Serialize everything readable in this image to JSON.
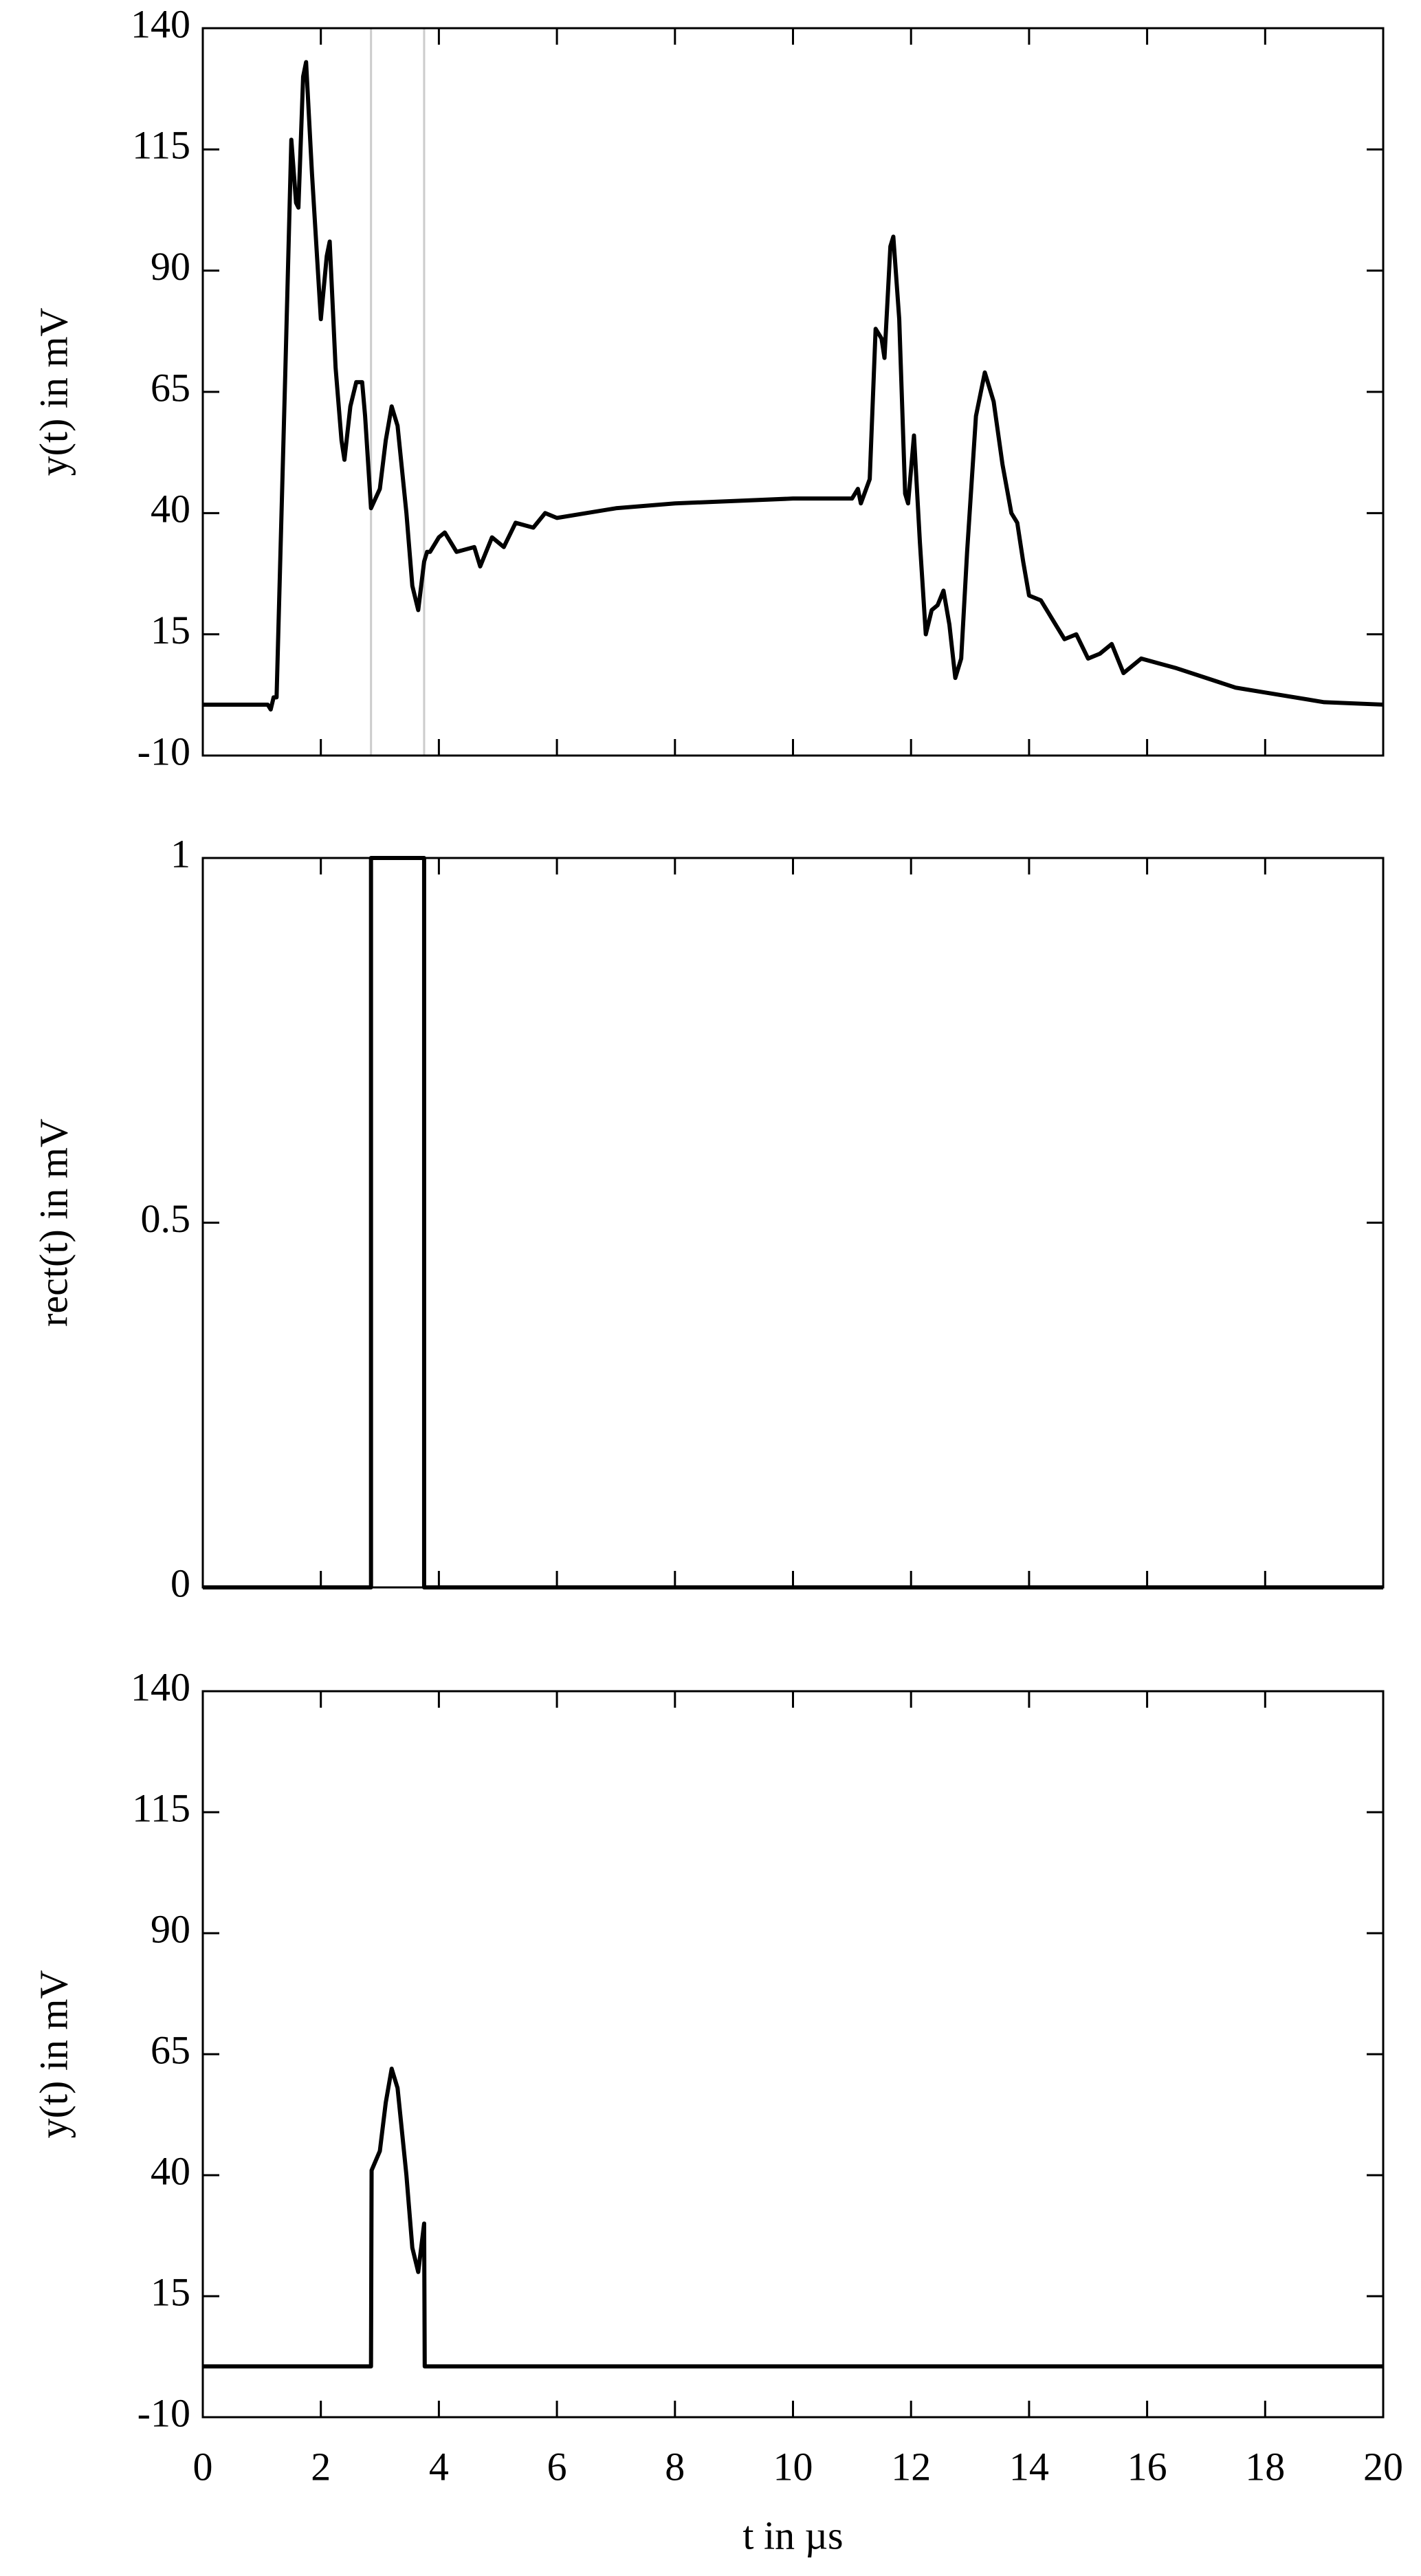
{
  "chart_data": [
    {
      "type": "line",
      "ylabel": "y(t) in mV",
      "xlim": [
        0,
        20
      ],
      "ylim": [
        -10,
        140
      ],
      "yticks": [
        -10,
        15,
        40,
        65,
        90,
        115,
        140
      ],
      "markers": [
        2.85,
        3.75
      ],
      "color": "#000000",
      "x": [
        0,
        1.1,
        1.15,
        1.2,
        1.25,
        1.4,
        1.5,
        1.58,
        1.62,
        1.7,
        1.75,
        1.85,
        2.0,
        2.1,
        2.15,
        2.25,
        2.35,
        2.4,
        2.5,
        2.6,
        2.7,
        2.75,
        2.85,
        3.0,
        3.1,
        3.2,
        3.3,
        3.45,
        3.55,
        3.65,
        3.75,
        3.8,
        3.85,
        4.0,
        4.1,
        4.3,
        4.6,
        4.7,
        4.9,
        5.1,
        5.3,
        5.6,
        5.8,
        6.0,
        6.5,
        7.0,
        8,
        9,
        10,
        11,
        11.1,
        11.15,
        11.3,
        11.4,
        11.5,
        11.55,
        11.65,
        11.7,
        11.8,
        11.9,
        11.95,
        12.05,
        12.15,
        12.25,
        12.35,
        12.45,
        12.55,
        12.65,
        12.75,
        12.85,
        12.95,
        13.1,
        13.25,
        13.4,
        13.55,
        13.7,
        13.8,
        13.9,
        14.0,
        14.2,
        14.4,
        14.6,
        14.8,
        15.0,
        15.2,
        15.4,
        15.6,
        15.9,
        16.2,
        16.5,
        17.0,
        17.5,
        18,
        19,
        20
      ],
      "values": [
        0.5,
        0.5,
        -0.5,
        2,
        2,
        70,
        117,
        104,
        103,
        130,
        133,
        110,
        80,
        93,
        96,
        70,
        55,
        51,
        62,
        67,
        67,
        60,
        41,
        45,
        55,
        62,
        58,
        40,
        25,
        20,
        30,
        32,
        32,
        35,
        36,
        32,
        33,
        29,
        35,
        33,
        38,
        37,
        40,
        39,
        40,
        41,
        42,
        42.5,
        43,
        43,
        45,
        42,
        47,
        78,
        76,
        72,
        95,
        97,
        80,
        44,
        42,
        56,
        34,
        15,
        20,
        21,
        24,
        17,
        6,
        10,
        32,
        60,
        69,
        63,
        50,
        40,
        38,
        30,
        23,
        22,
        18,
        14,
        15,
        10,
        11,
        13,
        7,
        10,
        9,
        8,
        6,
        4,
        3,
        1,
        0.5
      ]
    },
    {
      "type": "line",
      "ylabel": "rect(t) in mV",
      "xlim": [
        0,
        20
      ],
      "ylim": [
        0,
        1
      ],
      "yticks": [
        0,
        0.5,
        1
      ],
      "color": "#000000",
      "x": [
        0,
        2.85,
        2.85,
        3.75,
        3.75,
        20
      ],
      "values": [
        0,
        0,
        1,
        1,
        0,
        0
      ]
    },
    {
      "type": "line",
      "ylabel": "y(t) in mV",
      "xlabel": "t in µs",
      "xlim": [
        0,
        20
      ],
      "xticks": [
        0,
        2,
        4,
        6,
        8,
        10,
        12,
        14,
        16,
        18,
        20
      ],
      "ylim": [
        -10,
        140
      ],
      "yticks": [
        -10,
        15,
        40,
        65,
        90,
        115,
        140
      ],
      "color": "#000000",
      "x": [
        0,
        2.85,
        2.86,
        3.0,
        3.1,
        3.2,
        3.3,
        3.45,
        3.55,
        3.65,
        3.75,
        3.76,
        20
      ],
      "values": [
        0.5,
        0.5,
        41,
        45,
        55,
        62,
        58,
        40,
        25,
        20,
        30,
        0.5,
        0.5
      ]
    }
  ]
}
